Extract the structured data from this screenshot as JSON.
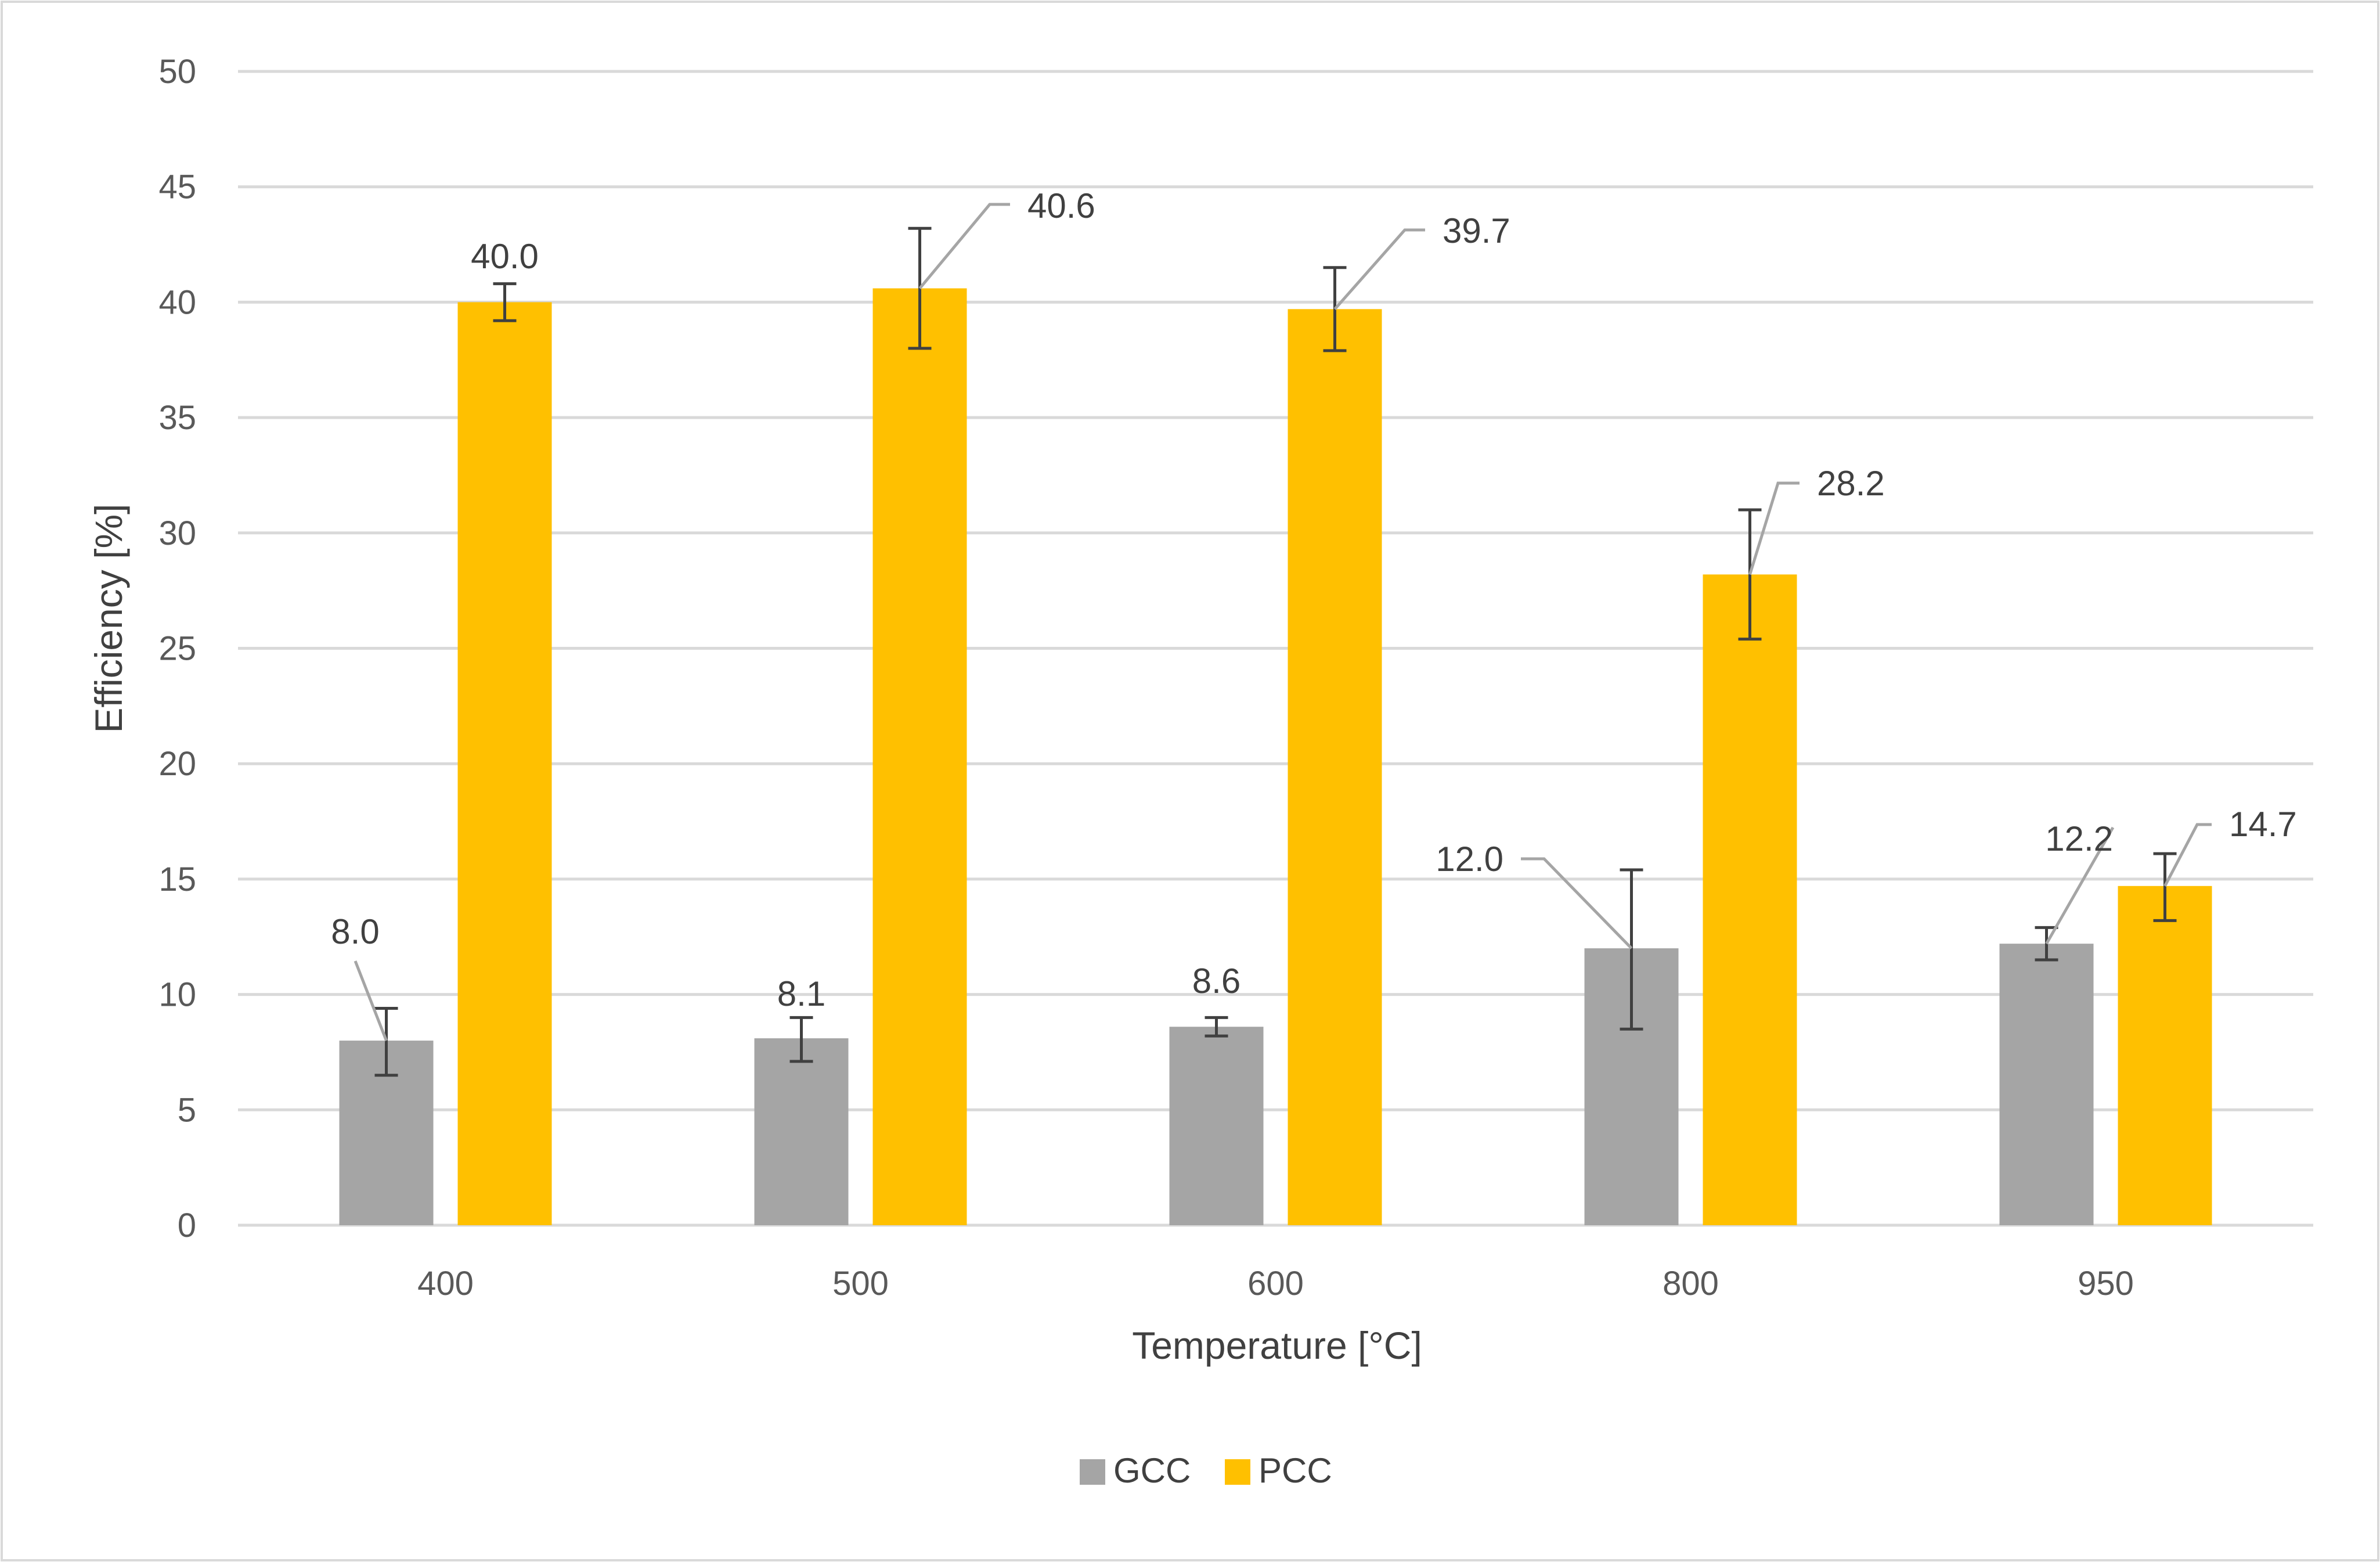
{
  "chart_data": {
    "type": "bar",
    "title": "",
    "xlabel": "Temperature [°C]",
    "ylabel": "Efficiency [%]",
    "categories": [
      "400",
      "500",
      "600",
      "800",
      "950"
    ],
    "ylim": [
      0,
      50
    ],
    "yticks": [
      0,
      5,
      10,
      15,
      20,
      25,
      30,
      35,
      40,
      45,
      50
    ],
    "grid": true,
    "legend_position": "bottom-center",
    "series": [
      {
        "name": "GCC",
        "color": "#a5a5a5",
        "values": [
          8.0,
          8.1,
          8.6,
          12.0,
          12.2
        ],
        "labels": [
          "8.0",
          "8.1",
          "8.6",
          "12.0",
          "12.2"
        ],
        "error_low": [
          6.5,
          7.1,
          8.2,
          8.5,
          11.5
        ],
        "error_high": [
          9.4,
          9.0,
          9.0,
          15.4,
          12.9
        ]
      },
      {
        "name": "PCC",
        "color": "#ffc000",
        "values": [
          40.0,
          40.6,
          39.7,
          28.2,
          14.7
        ],
        "labels": [
          "40.0",
          "40.6",
          "39.7",
          "28.2",
          "14.7"
        ],
        "error_low": [
          39.2,
          38.0,
          37.9,
          25.4,
          13.2
        ],
        "error_high": [
          40.8,
          43.2,
          41.5,
          31.0,
          16.1
        ]
      }
    ]
  }
}
